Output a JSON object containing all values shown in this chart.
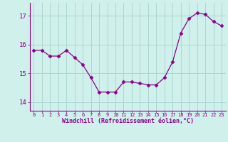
{
  "x": [
    0,
    1,
    2,
    3,
    4,
    5,
    6,
    7,
    8,
    9,
    10,
    11,
    12,
    13,
    14,
    15,
    16,
    17,
    18,
    19,
    20,
    21,
    22,
    23
  ],
  "y": [
    15.8,
    15.8,
    15.6,
    15.6,
    15.8,
    15.55,
    15.3,
    14.85,
    14.35,
    14.35,
    14.35,
    14.7,
    14.7,
    14.65,
    14.6,
    14.6,
    14.85,
    15.4,
    16.4,
    16.9,
    17.1,
    17.05,
    16.8,
    16.65
  ],
  "line_color": "#8b008b",
  "marker": "D",
  "marker_size": 2.5,
  "bg_color": "#cff0eb",
  "grid_color": "#aad8d0",
  "xlabel": "Windchill (Refroidissement éolien,°C)",
  "xlabel_color": "#8b008b",
  "tick_color": "#8b008b",
  "yticks": [
    14,
    15,
    16,
    17
  ],
  "xticks": [
    0,
    1,
    2,
    3,
    4,
    5,
    6,
    7,
    8,
    9,
    10,
    11,
    12,
    13,
    14,
    15,
    16,
    17,
    18,
    19,
    20,
    21,
    22,
    23
  ],
  "ylim": [
    13.7,
    17.45
  ],
  "xlim": [
    -0.5,
    23.5
  ]
}
